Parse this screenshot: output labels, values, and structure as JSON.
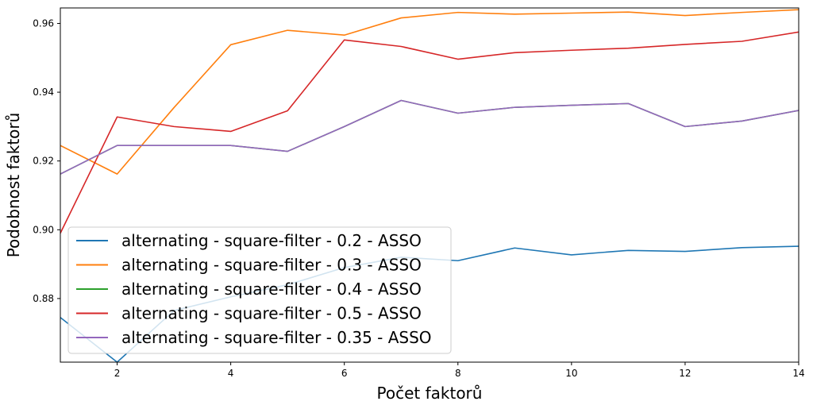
{
  "chart_data": {
    "type": "line",
    "title": "",
    "xlabel": "Počet faktorů",
    "ylabel": "Podobnost faktorů",
    "xlim": [
      1,
      14
    ],
    "ylim": [
      0.8615,
      0.9645
    ],
    "x_ticks": [
      2,
      4,
      6,
      8,
      10,
      12,
      14
    ],
    "y_ticks": [
      0.88,
      0.9,
      0.92,
      0.94,
      0.96
    ],
    "x_tick_labels": [
      "2",
      "4",
      "6",
      "8",
      "10",
      "12",
      "14"
    ],
    "y_tick_labels": [
      "0.88",
      "0.90",
      "0.92",
      "0.94",
      "0.96"
    ],
    "grid": false,
    "legend_position": "lower-left",
    "x": [
      1,
      2,
      3,
      4,
      5,
      6,
      7,
      8,
      9,
      10,
      11,
      12,
      13,
      14
    ],
    "series": [
      {
        "name": "alternating - square-filter - 0.2 - ASSO",
        "color": "#1f77b4",
        "values": [
          0.8745,
          0.8615,
          0.8765,
          0.8805,
          0.884,
          0.889,
          0.892,
          0.891,
          0.8947,
          0.8927,
          0.894,
          0.8937,
          0.8948,
          0.8952
        ]
      },
      {
        "name": "alternating - square-filter - 0.3 - ASSO",
        "color": "#ff7f0e",
        "values": [
          0.9245,
          0.9162,
          0.9355,
          0.9538,
          0.958,
          0.9566,
          0.9616,
          0.9632,
          0.9627,
          0.963,
          0.9633,
          0.9623,
          0.9632,
          0.964
        ]
      },
      {
        "name": "alternating - square-filter - 0.4 - ASSO",
        "color": "#2ca02c",
        "values": [
          0.9162,
          0.9245,
          0.9245,
          0.9245,
          0.9228,
          0.93,
          0.9376,
          0.9339,
          0.9356,
          0.9362,
          0.9367,
          0.93,
          0.9316,
          0.9347
        ]
      },
      {
        "name": "alternating - square-filter - 0.5 - ASSO",
        "color": "#d62728",
        "values": [
          0.899,
          0.9328,
          0.93,
          0.9286,
          0.9346,
          0.9552,
          0.9533,
          0.9496,
          0.9515,
          0.9522,
          0.9528,
          0.9539,
          0.9548,
          0.9575
        ]
      },
      {
        "name": "alternating - square-filter - 0.35 - ASSO",
        "color": "#9467bd",
        "values": [
          0.9162,
          0.9245,
          0.9245,
          0.9245,
          0.9228,
          0.93,
          0.9376,
          0.9339,
          0.9356,
          0.9362,
          0.9367,
          0.93,
          0.9316,
          0.9347
        ]
      }
    ]
  }
}
